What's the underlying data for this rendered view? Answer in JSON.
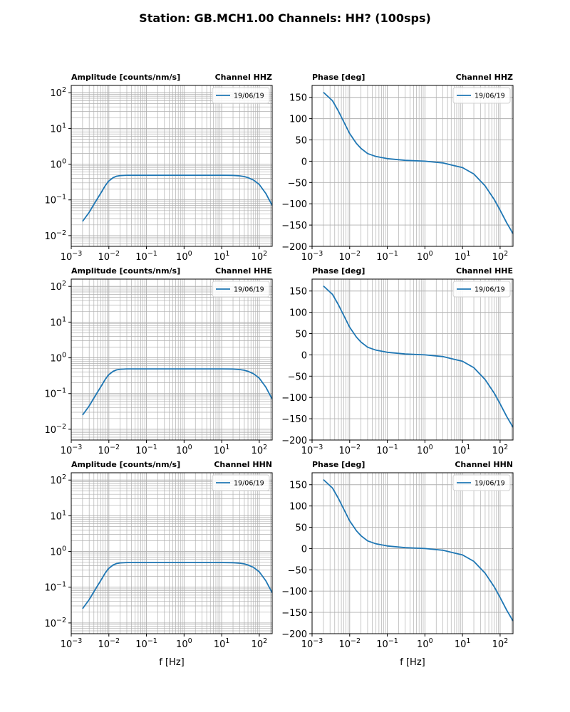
{
  "title": "Station: GB.MCH1.00 Channels: HH? (100sps)",
  "colors": {
    "line": "#1f77b4",
    "grid": "#b0b0b0",
    "axis": "#000000"
  },
  "chart_data": [
    {
      "type": "line",
      "kind": "amplitude",
      "channel_label": "Channel HHZ",
      "title": "Amplitude [counts/nm/s]",
      "xlabel": "",
      "xscale": "log",
      "yscale": "log",
      "xlim": [
        0.001,
        220
      ],
      "ylim": [
        0.005,
        160
      ],
      "x_ticks": [
        "10^-3",
        "10^-2",
        "10^-1",
        "10^0",
        "10^1",
        "10^2"
      ],
      "y_ticks": [
        "10^-2",
        "10^-1",
        "10^0",
        "10^1",
        "10^2"
      ],
      "legend": "19/06/19",
      "legend_position": "top-right",
      "grid": true,
      "series": [
        {
          "name": "19/06/19",
          "x": [
            0.002,
            0.003,
            0.004,
            0.006,
            0.008,
            0.01,
            0.013,
            0.016,
            0.02,
            0.03,
            0.05,
            0.1,
            1,
            10,
            20,
            30,
            40,
            50,
            70,
            100,
            150,
            220
          ],
          "y": [
            0.025,
            0.045,
            0.075,
            0.15,
            0.25,
            0.34,
            0.42,
            0.46,
            0.48,
            0.49,
            0.49,
            0.49,
            0.49,
            0.49,
            0.485,
            0.47,
            0.45,
            0.42,
            0.36,
            0.27,
            0.15,
            0.07
          ]
        }
      ]
    },
    {
      "type": "line",
      "kind": "phase",
      "channel_label": "Channel HHZ",
      "title": "Phase [deg]",
      "xlabel": "",
      "xscale": "log",
      "yscale": "linear",
      "xlim": [
        0.001,
        220
      ],
      "ylim": [
        -200,
        178
      ],
      "x_ticks": [
        "10^-3",
        "10^-2",
        "10^-1",
        "10^0",
        "10^1",
        "10^2"
      ],
      "y_ticks": [
        "150",
        "100",
        "50",
        "0",
        "−50",
        "−100",
        "−150",
        "−200"
      ],
      "legend": "19/06/19",
      "legend_position": "top-right",
      "grid": true,
      "series": [
        {
          "name": "19/06/19",
          "x": [
            0.002,
            0.0035,
            0.005,
            0.007,
            0.01,
            0.015,
            0.02,
            0.03,
            0.05,
            0.1,
            0.3,
            1,
            3,
            10,
            20,
            40,
            70,
            100,
            150,
            220
          ],
          "y": [
            162,
            142,
            118,
            92,
            65,
            42,
            30,
            18,
            11,
            6,
            2,
            0,
            -4,
            -15,
            -30,
            -58,
            -90,
            -115,
            -145,
            -170
          ]
        }
      ]
    },
    {
      "type": "line",
      "kind": "amplitude",
      "channel_label": "Channel HHE",
      "title": "Amplitude [counts/nm/s]",
      "xlabel": "",
      "xscale": "log",
      "yscale": "log",
      "xlim": [
        0.001,
        220
      ],
      "ylim": [
        0.005,
        160
      ],
      "x_ticks": [
        "10^-3",
        "10^-2",
        "10^-1",
        "10^0",
        "10^1",
        "10^2"
      ],
      "y_ticks": [
        "10^-2",
        "10^-1",
        "10^0",
        "10^1",
        "10^2"
      ],
      "legend": "19/06/19",
      "legend_position": "top-right",
      "grid": true,
      "series": [
        {
          "name": "19/06/19",
          "x": [
            0.002,
            0.003,
            0.004,
            0.006,
            0.008,
            0.01,
            0.013,
            0.016,
            0.02,
            0.03,
            0.05,
            0.1,
            1,
            10,
            20,
            30,
            40,
            50,
            70,
            100,
            150,
            220
          ],
          "y": [
            0.025,
            0.045,
            0.075,
            0.15,
            0.25,
            0.34,
            0.42,
            0.46,
            0.48,
            0.49,
            0.49,
            0.49,
            0.49,
            0.49,
            0.485,
            0.47,
            0.45,
            0.42,
            0.36,
            0.27,
            0.15,
            0.07
          ]
        }
      ]
    },
    {
      "type": "line",
      "kind": "phase",
      "channel_label": "Channel HHE",
      "title": "Phase [deg]",
      "xlabel": "",
      "xscale": "log",
      "yscale": "linear",
      "xlim": [
        0.001,
        220
      ],
      "ylim": [
        -200,
        178
      ],
      "x_ticks": [
        "10^-3",
        "10^-2",
        "10^-1",
        "10^0",
        "10^1",
        "10^2"
      ],
      "y_ticks": [
        "150",
        "100",
        "50",
        "0",
        "−50",
        "−100",
        "−150",
        "−200"
      ],
      "legend": "19/06/19",
      "legend_position": "top-right",
      "grid": true,
      "series": [
        {
          "name": "19/06/19",
          "x": [
            0.002,
            0.0035,
            0.005,
            0.007,
            0.01,
            0.015,
            0.02,
            0.03,
            0.05,
            0.1,
            0.3,
            1,
            3,
            10,
            20,
            40,
            70,
            100,
            150,
            220
          ],
          "y": [
            162,
            142,
            118,
            92,
            65,
            42,
            30,
            18,
            11,
            6,
            2,
            0,
            -4,
            -15,
            -30,
            -58,
            -90,
            -115,
            -145,
            -170
          ]
        }
      ]
    },
    {
      "type": "line",
      "kind": "amplitude",
      "channel_label": "Channel HHN",
      "title": "Amplitude [counts/nm/s]",
      "xlabel": "f [Hz]",
      "xscale": "log",
      "yscale": "log",
      "xlim": [
        0.001,
        220
      ],
      "ylim": [
        0.005,
        160
      ],
      "x_ticks": [
        "10^-3",
        "10^-2",
        "10^-1",
        "10^0",
        "10^1",
        "10^2"
      ],
      "y_ticks": [
        "10^-2",
        "10^-1",
        "10^0",
        "10^1",
        "10^2"
      ],
      "legend": "19/06/19",
      "legend_position": "top-right",
      "grid": true,
      "series": [
        {
          "name": "19/06/19",
          "x": [
            0.002,
            0.003,
            0.004,
            0.006,
            0.008,
            0.01,
            0.013,
            0.016,
            0.02,
            0.03,
            0.05,
            0.1,
            1,
            10,
            20,
            30,
            40,
            50,
            70,
            100,
            150,
            220
          ],
          "y": [
            0.025,
            0.045,
            0.075,
            0.15,
            0.25,
            0.34,
            0.42,
            0.46,
            0.48,
            0.49,
            0.49,
            0.49,
            0.49,
            0.49,
            0.485,
            0.47,
            0.45,
            0.42,
            0.36,
            0.27,
            0.15,
            0.07
          ]
        }
      ]
    },
    {
      "type": "line",
      "kind": "phase",
      "channel_label": "Channel HHN",
      "title": "Phase [deg]",
      "xlabel": "f [Hz]",
      "xscale": "log",
      "yscale": "linear",
      "xlim": [
        0.001,
        220
      ],
      "ylim": [
        -200,
        178
      ],
      "x_ticks": [
        "10^-3",
        "10^-2",
        "10^-1",
        "10^0",
        "10^1",
        "10^2"
      ],
      "y_ticks": [
        "150",
        "100",
        "50",
        "0",
        "−50",
        "−100",
        "−150",
        "−200"
      ],
      "legend": "19/06/19",
      "legend_position": "top-right",
      "grid": true,
      "series": [
        {
          "name": "19/06/19",
          "x": [
            0.002,
            0.0035,
            0.005,
            0.007,
            0.01,
            0.015,
            0.02,
            0.03,
            0.05,
            0.1,
            0.3,
            1,
            3,
            10,
            20,
            40,
            70,
            100,
            150,
            220
          ],
          "y": [
            162,
            142,
            118,
            92,
            65,
            42,
            30,
            18,
            11,
            6,
            2,
            0,
            -4,
            -15,
            -30,
            -58,
            -90,
            -115,
            -145,
            -170
          ]
        }
      ]
    }
  ]
}
